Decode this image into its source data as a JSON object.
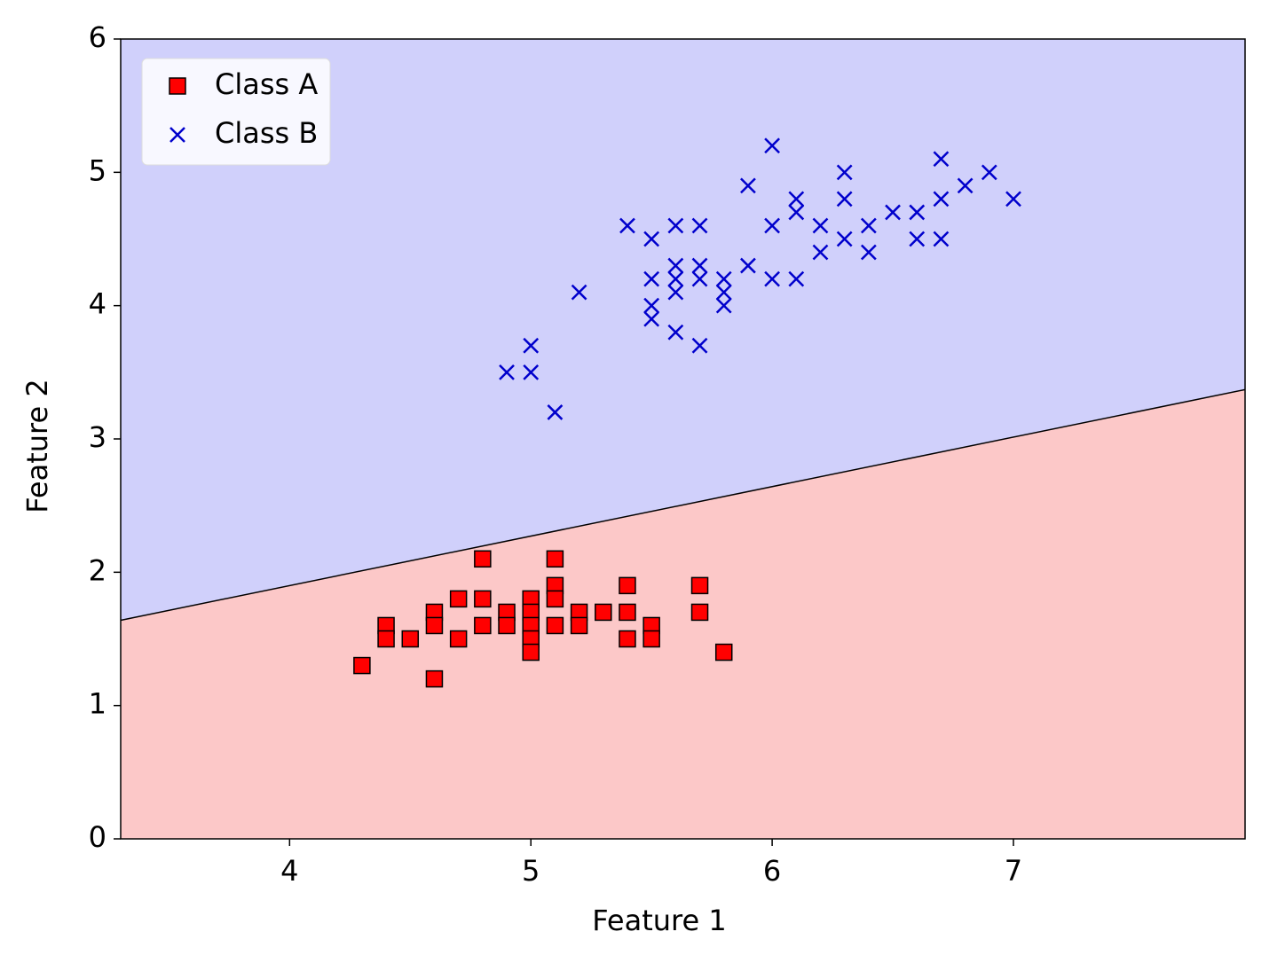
{
  "chart_data": {
    "type": "scatter",
    "xlabel": "Feature 1",
    "ylabel": "Feature 2",
    "xlim": [
      3.3,
      7.96
    ],
    "ylim": [
      0,
      6
    ],
    "xticks": [
      4,
      5,
      6,
      7
    ],
    "yticks": [
      0,
      1,
      2,
      3,
      4,
      5,
      6
    ],
    "legend": "upper left",
    "boundary": {
      "x": [
        3.3,
        7.96
      ],
      "y": [
        1.64,
        3.37
      ],
      "color": "#000000",
      "above_color": "#d0d0fb",
      "below_color": "#fcc8c8"
    },
    "series": [
      {
        "name": "Class A",
        "color": "#ff0000",
        "marker": "square",
        "x": [
          4.3,
          4.4,
          4.4,
          4.5,
          4.6,
          4.6,
          4.6,
          4.7,
          4.7,
          4.8,
          4.8,
          4.8,
          4.9,
          4.9,
          5.0,
          5.0,
          5.0,
          5.0,
          5.0,
          5.1,
          5.1,
          5.1,
          5.1,
          5.2,
          5.2,
          5.3,
          5.4,
          5.4,
          5.4,
          5.5,
          5.5,
          5.7,
          5.7,
          5.8
        ],
        "y": [
          1.3,
          1.6,
          1.5,
          1.5,
          1.7,
          1.6,
          1.2,
          1.8,
          1.5,
          2.1,
          1.8,
          1.6,
          1.7,
          1.6,
          1.8,
          1.7,
          1.6,
          1.5,
          1.4,
          2.1,
          1.9,
          1.8,
          1.6,
          1.7,
          1.6,
          1.7,
          1.9,
          1.7,
          1.5,
          1.6,
          1.5,
          1.9,
          1.7,
          1.4
        ]
      },
      {
        "name": "Class B",
        "color": "#0000cc",
        "marker": "x",
        "x": [
          4.9,
          5.0,
          5.0,
          5.1,
          5.2,
          5.4,
          5.5,
          5.5,
          5.5,
          5.5,
          5.6,
          5.6,
          5.6,
          5.6,
          5.6,
          5.7,
          5.7,
          5.7,
          5.7,
          5.8,
          5.8,
          5.8,
          5.9,
          5.9,
          6.0,
          6.0,
          6.0,
          6.1,
          6.1,
          6.1,
          6.2,
          6.2,
          6.3,
          6.3,
          6.3,
          6.4,
          6.4,
          6.5,
          6.6,
          6.6,
          6.7,
          6.7,
          6.7,
          6.8,
          6.9,
          7.0
        ],
        "y": [
          3.5,
          3.7,
          3.5,
          3.2,
          4.1,
          4.6,
          4.5,
          4.2,
          4.0,
          3.9,
          4.6,
          4.3,
          4.2,
          4.1,
          3.8,
          4.6,
          4.3,
          4.2,
          3.7,
          4.2,
          4.1,
          4.0,
          4.9,
          4.3,
          5.2,
          4.6,
          4.2,
          4.8,
          4.7,
          4.2,
          4.6,
          4.4,
          5.0,
          4.8,
          4.5,
          4.6,
          4.4,
          4.7,
          4.7,
          4.5,
          5.1,
          4.8,
          4.5,
          4.9,
          5.0,
          4.8
        ]
      }
    ]
  }
}
